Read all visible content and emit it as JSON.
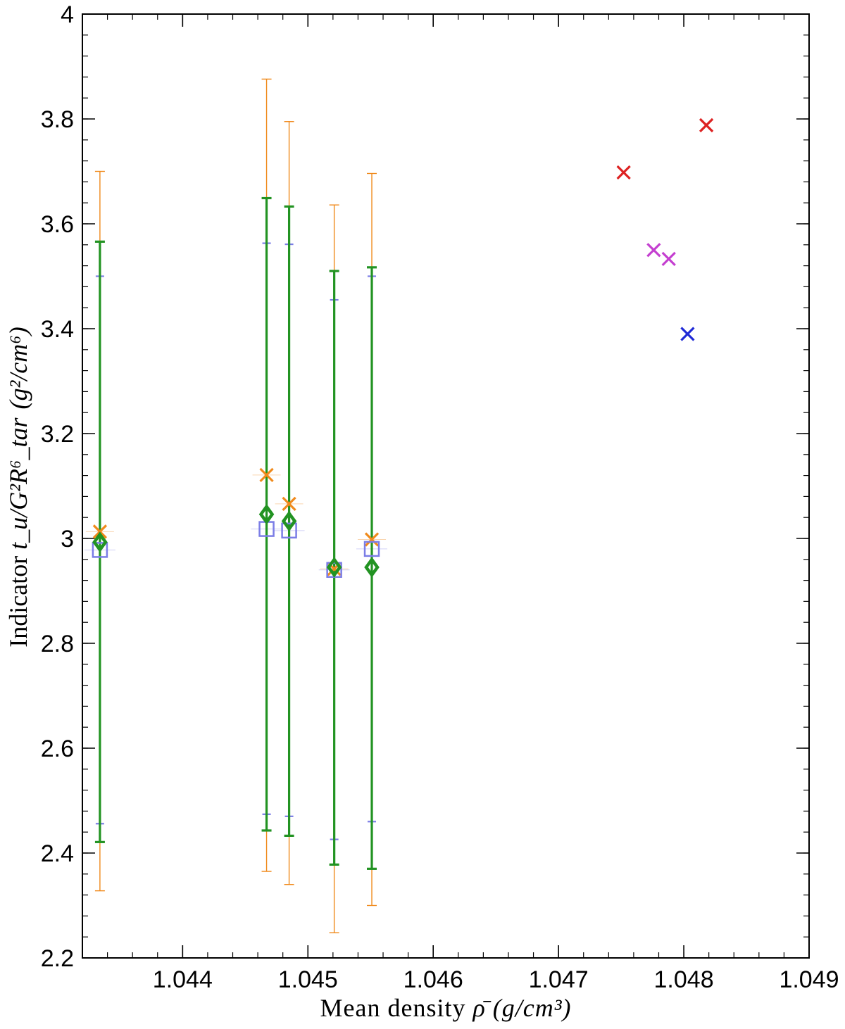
{
  "chart_data": {
    "type": "scatter",
    "xlabel_prefix": "Mean density ",
    "xlabel_symbol": "ρ̄",
    "xlabel_units": "(g/cm³)",
    "ylabel_prefix": "Indicator ",
    "ylabel_math": "t_u/G²R⁶_tar",
    "ylabel_units": "(g²/cm⁶)",
    "xlim": [
      1.0432,
      1.049
    ],
    "ylim": [
      2.2,
      4.0
    ],
    "x_ticks": [
      {
        "value": 1.044,
        "label": "1.044"
      },
      {
        "value": 1.045,
        "label": "1.045"
      },
      {
        "value": 1.046,
        "label": "1.046"
      },
      {
        "value": 1.047,
        "label": "1.047"
      },
      {
        "value": 1.048,
        "label": "1.048"
      },
      {
        "value": 1.049,
        "label": "1.049"
      }
    ],
    "y_ticks": [
      {
        "value": 2.2,
        "label": "2.2"
      },
      {
        "value": 2.4,
        "label": "2.4"
      },
      {
        "value": 2.6,
        "label": "2.6"
      },
      {
        "value": 2.8,
        "label": "2.8"
      },
      {
        "value": 3.0,
        "label": "3"
      },
      {
        "value": 3.2,
        "label": "3.2"
      },
      {
        "value": 3.4,
        "label": "3.4"
      },
      {
        "value": 3.6,
        "label": "3.6"
      },
      {
        "value": 3.8,
        "label": "3.8"
      },
      {
        "value": 4.0,
        "label": "4"
      }
    ],
    "x_minor_step": 0.0002,
    "y_minor_step": 0.04,
    "grid": false,
    "series": [
      {
        "marker": "x",
        "color": "#f08a1c",
        "points": [
          {
            "x": 1.04334,
            "y": 3.013,
            "ylo": 2.328,
            "yhi": 3.7
          },
          {
            "x": 1.04467,
            "y": 3.121,
            "ylo": 2.365,
            "yhi": 3.876
          },
          {
            "x": 1.04485,
            "y": 3.066,
            "ylo": 2.34,
            "yhi": 3.795
          },
          {
            "x": 1.04521,
            "y": 2.942,
            "ylo": 2.248,
            "yhi": 3.636
          },
          {
            "x": 1.04551,
            "y": 2.998,
            "ylo": 2.3,
            "yhi": 3.696
          }
        ]
      },
      {
        "marker": "square",
        "color": "#7b7de6",
        "points": [
          {
            "x": 1.04334,
            "y": 2.978,
            "ylo": 2.456,
            "yhi": 3.5
          },
          {
            "x": 1.04467,
            "y": 3.018,
            "ylo": 2.474,
            "yhi": 3.563
          },
          {
            "x": 1.04485,
            "y": 3.015,
            "ylo": 2.47,
            "yhi": 3.561
          },
          {
            "x": 1.04521,
            "y": 2.94,
            "ylo": 2.426,
            "yhi": 3.455
          },
          {
            "x": 1.04551,
            "y": 2.98,
            "ylo": 2.46,
            "yhi": 3.5
          }
        ]
      },
      {
        "marker": "diamond",
        "color": "#229322",
        "points": [
          {
            "x": 1.04334,
            "y": 2.993,
            "ylo": 2.421,
            "yhi": 3.566
          },
          {
            "x": 1.04467,
            "y": 3.046,
            "ylo": 2.443,
            "yhi": 3.649
          },
          {
            "x": 1.04485,
            "y": 3.033,
            "ylo": 2.433,
            "yhi": 3.633
          },
          {
            "x": 1.04521,
            "y": 2.945,
            "ylo": 2.378,
            "yhi": 3.51
          },
          {
            "x": 1.04551,
            "y": 2.945,
            "ylo": 2.37,
            "yhi": 3.517
          }
        ]
      },
      {
        "marker": "x",
        "color": "#dd2222",
        "points": [
          {
            "x": 1.04752,
            "y": 3.698
          },
          {
            "x": 1.04818,
            "y": 3.788
          }
        ]
      },
      {
        "marker": "x",
        "color": "#c43fd0",
        "points": [
          {
            "x": 1.04776,
            "y": 3.55
          },
          {
            "x": 1.04788,
            "y": 3.533
          }
        ]
      },
      {
        "marker": "x",
        "color": "#1f2ad6",
        "points": [
          {
            "x": 1.04803,
            "y": 3.39
          }
        ]
      }
    ]
  }
}
